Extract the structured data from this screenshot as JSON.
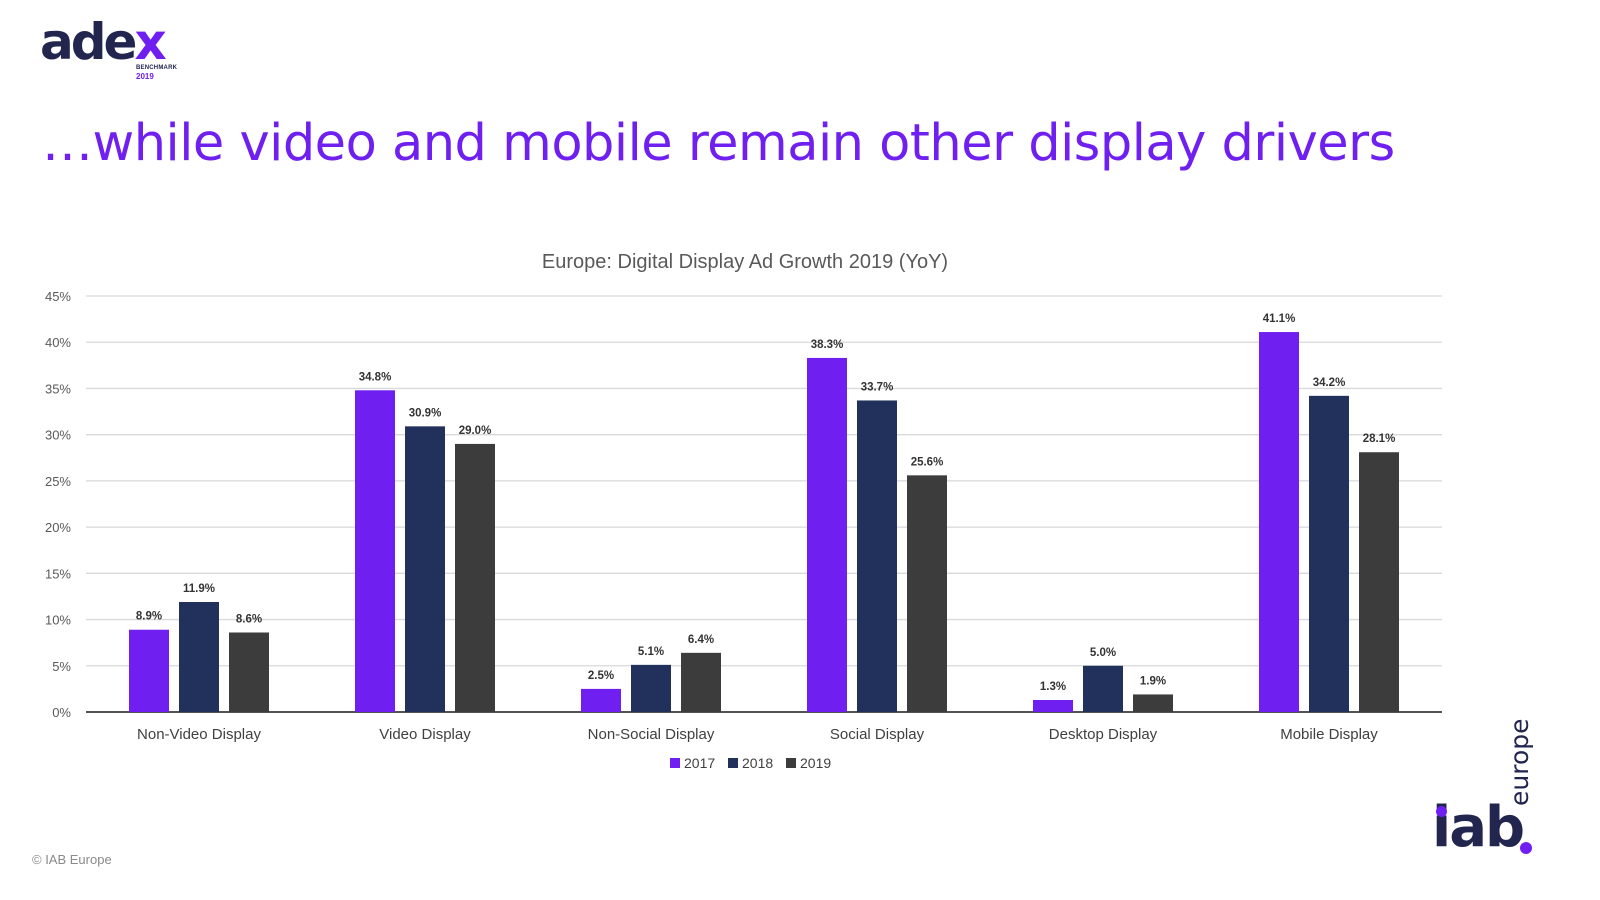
{
  "logo": {
    "word_main": "ade",
    "word_accent": "x",
    "sub": "BENCHMARK",
    "year": "2019"
  },
  "slide_title": "…while video and mobile remain other display drivers",
  "chart_data": {
    "type": "bar",
    "title": "Europe: Digital Display Ad Growth 2019 (YoY)",
    "categories": [
      "Non-Video Display",
      "Video Display",
      "Non-Social Display",
      "Social Display",
      "Desktop Display",
      "Mobile Display"
    ],
    "series": [
      {
        "name": "2017",
        "color": "#6f1ff0",
        "values": [
          8.9,
          34.8,
          2.5,
          38.3,
          1.3,
          41.1
        ],
        "labels": [
          "8.9%",
          "34.8%",
          "2.5%",
          "38.3%",
          "1.3%",
          "41.1%"
        ]
      },
      {
        "name": "2018",
        "color": "#22305c",
        "values": [
          11.9,
          30.9,
          5.1,
          33.7,
          5.0,
          34.2
        ],
        "labels": [
          "11.9%",
          "30.9%",
          "5.1%",
          "33.7%",
          "5.0%",
          "34.2%"
        ]
      },
      {
        "name": "2019",
        "color": "#3c3c3c",
        "values": [
          8.6,
          29.0,
          6.4,
          25.6,
          1.9,
          28.1
        ],
        "labels": [
          "8.6%",
          "29.0%",
          "6.4%",
          "25.6%",
          "1.9%",
          "28.1%"
        ]
      }
    ],
    "yticks": [
      "0%",
      "5%",
      "10%",
      "15%",
      "20%",
      "25%",
      "30%",
      "35%",
      "40%",
      "45%"
    ],
    "ylim": [
      0,
      45
    ],
    "grid": true,
    "legend": "bottom"
  },
  "footer": "© IAB Europe",
  "iab_logo": {
    "word": "iab",
    "sub": "europe"
  }
}
